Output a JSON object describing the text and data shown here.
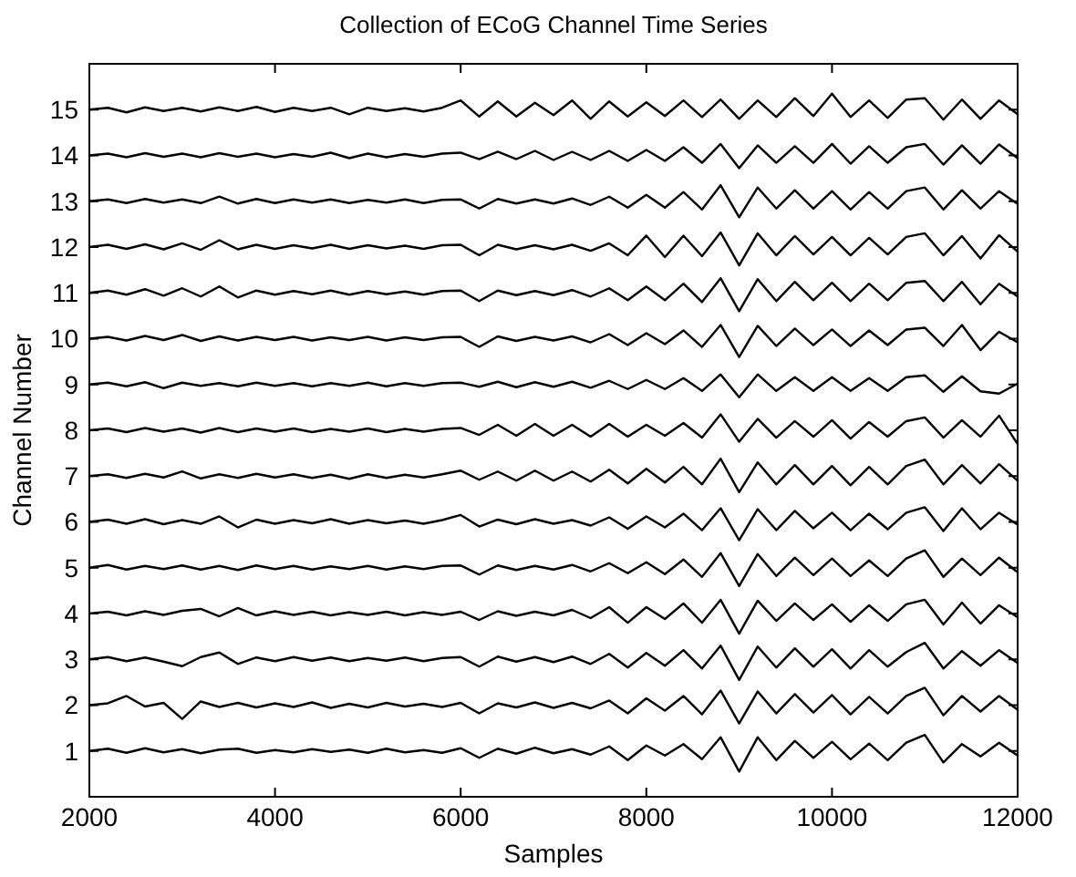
{
  "chart_data": {
    "type": "line",
    "title": "Collection of ECoG Channel Time Series",
    "xlabel": "Samples",
    "ylabel": "Channel Number",
    "x": [
      2000,
      2200,
      2400,
      2600,
      2800,
      3000,
      3200,
      3400,
      3600,
      3800,
      4000,
      4200,
      4400,
      4600,
      4800,
      5000,
      5200,
      5400,
      5600,
      5800,
      6000,
      6200,
      6400,
      6600,
      6800,
      7000,
      7200,
      7400,
      7600,
      7800,
      8000,
      8200,
      8400,
      8600,
      8800,
      9000,
      9200,
      9400,
      9600,
      9800,
      10000,
      10200,
      10400,
      10600,
      10800,
      11000,
      11200,
      11400,
      11600,
      11800,
      12000
    ],
    "xlim": [
      2000,
      12000
    ],
    "xticks": [
      2000,
      4000,
      6000,
      8000,
      10000,
      12000
    ],
    "ylim": [
      0,
      16
    ],
    "yticks": [
      1,
      2,
      3,
      4,
      5,
      6,
      7,
      8,
      9,
      10,
      11,
      12,
      13,
      14,
      15
    ],
    "series": [
      {
        "color": "#000000",
        "values": [
          1,
          1.05,
          0.96,
          1.06,
          0.97,
          1.04,
          0.95,
          1.03,
          1.05,
          0.96,
          1.02,
          0.97,
          1.04,
          0.98,
          1.03,
          0.96,
          1.05,
          0.97,
          1.02,
          0.96,
          1.06,
          0.85,
          1.05,
          0.94,
          1.07,
          0.95,
          1.04,
          0.92,
          1.1,
          0.8,
          1.12,
          0.9,
          1.15,
          0.82,
          1.3,
          0.55,
          1.3,
          0.8,
          1.22,
          0.85,
          1.2,
          0.82,
          1.16,
          0.8,
          1.18,
          1.35,
          0.75,
          1.15,
          0.88,
          1.18,
          0.9
        ]
      },
      {
        "color": "#000000",
        "values": [
          2,
          2.04,
          2.2,
          1.97,
          2.05,
          1.7,
          2.08,
          1.96,
          2.05,
          1.95,
          2.04,
          1.96,
          2.06,
          1.94,
          2.03,
          1.95,
          2.05,
          1.97,
          2.03,
          1.96,
          2.05,
          1.82,
          2.04,
          1.95,
          2.06,
          1.94,
          2.05,
          1.93,
          2.1,
          1.82,
          2.15,
          1.88,
          2.2,
          1.8,
          2.32,
          1.6,
          2.3,
          1.82,
          2.24,
          1.84,
          2.22,
          1.8,
          2.18,
          1.82,
          2.2,
          2.38,
          1.78,
          2.2,
          1.86,
          2.2,
          1.9
        ]
      },
      {
        "color": "#000000",
        "values": [
          3,
          3.05,
          2.96,
          3.04,
          2.95,
          2.85,
          3.05,
          3.15,
          2.9,
          3.04,
          2.96,
          3.05,
          2.97,
          3.04,
          2.96,
          3.03,
          2.97,
          3.04,
          2.96,
          3.03,
          3.05,
          2.84,
          3.06,
          2.95,
          3.05,
          2.94,
          3.06,
          2.9,
          3.12,
          2.82,
          3.14,
          2.86,
          3.2,
          2.8,
          3.3,
          2.55,
          3.28,
          2.82,
          3.24,
          2.84,
          3.22,
          2.8,
          3.2,
          2.84,
          3.16,
          3.36,
          2.8,
          3.18,
          2.86,
          3.2,
          2.92
        ]
      },
      {
        "color": "#000000",
        "values": [
          4,
          4.04,
          3.96,
          4.05,
          3.97,
          4.06,
          4.1,
          3.94,
          4.12,
          3.96,
          4.05,
          3.97,
          4.04,
          3.96,
          4.03,
          3.97,
          4.04,
          3.96,
          4.03,
          3.97,
          4.04,
          3.86,
          4.05,
          3.95,
          4.04,
          3.96,
          4.08,
          3.9,
          4.14,
          3.8,
          4.14,
          3.88,
          4.22,
          3.8,
          4.3,
          3.56,
          4.28,
          3.84,
          4.22,
          3.86,
          4.2,
          3.82,
          4.18,
          3.84,
          4.2,
          4.3,
          3.76,
          4.24,
          3.78,
          4.18,
          3.92
        ]
      },
      {
        "color": "#000000",
        "values": [
          5,
          5.06,
          4.96,
          5.04,
          4.97,
          5.05,
          4.96,
          5.04,
          4.95,
          5.05,
          4.97,
          5.04,
          4.96,
          5.03,
          4.97,
          5.04,
          4.96,
          5.03,
          4.97,
          5.04,
          5.05,
          4.85,
          5.05,
          4.95,
          5.04,
          4.96,
          5.06,
          4.92,
          5.1,
          4.88,
          5.12,
          4.86,
          5.18,
          4.8,
          5.32,
          4.6,
          5.3,
          4.82,
          5.22,
          4.84,
          5.2,
          4.82,
          5.16,
          4.82,
          5.2,
          5.38,
          4.8,
          5.2,
          4.84,
          5.22,
          4.9
        ]
      },
      {
        "color": "#000000",
        "values": [
          6,
          6.05,
          5.96,
          6.06,
          5.95,
          6.04,
          5.96,
          6.12,
          5.88,
          6.05,
          5.96,
          6.04,
          5.97,
          6.06,
          5.96,
          6.04,
          5.97,
          6.03,
          5.96,
          6.04,
          6.15,
          5.9,
          6.05,
          5.95,
          6.06,
          5.96,
          6.04,
          5.92,
          6.1,
          5.85,
          6.12,
          5.88,
          6.18,
          5.82,
          6.3,
          5.6,
          6.28,
          5.82,
          6.24,
          5.86,
          6.2,
          5.82,
          6.18,
          5.84,
          6.2,
          6.32,
          5.8,
          6.3,
          5.84,
          6.2,
          5.94
        ]
      },
      {
        "color": "#000000",
        "values": [
          7,
          7.04,
          6.96,
          7.05,
          6.97,
          7.1,
          6.95,
          7.04,
          6.96,
          7.05,
          6.97,
          7.04,
          6.96,
          7.03,
          6.94,
          7.04,
          6.96,
          7.03,
          6.97,
          7.04,
          7.12,
          6.92,
          7.1,
          6.9,
          7.12,
          6.9,
          7.1,
          6.88,
          7.14,
          6.84,
          7.16,
          6.86,
          7.2,
          6.82,
          7.38,
          6.65,
          7.3,
          6.82,
          7.24,
          6.82,
          7.22,
          6.8,
          7.2,
          6.82,
          7.22,
          7.36,
          6.82,
          7.24,
          6.84,
          7.26,
          6.9
        ]
      },
      {
        "color": "#000000",
        "values": [
          8,
          8.04,
          7.96,
          8.05,
          7.97,
          8.04,
          7.95,
          8.05,
          7.96,
          8.04,
          7.97,
          8.04,
          7.96,
          8.03,
          7.97,
          8.04,
          7.96,
          8.03,
          7.97,
          8.03,
          8.05,
          7.9,
          8.12,
          7.88,
          8.14,
          7.88,
          8.12,
          7.86,
          8.14,
          7.86,
          8.12,
          7.88,
          8.16,
          7.84,
          8.35,
          7.75,
          8.25,
          7.84,
          8.2,
          7.86,
          8.22,
          7.82,
          8.18,
          7.86,
          8.2,
          8.28,
          7.84,
          8.22,
          7.86,
          8.32,
          7.7
        ]
      },
      {
        "color": "#000000",
        "values": [
          9,
          9.04,
          8.96,
          9.05,
          8.92,
          9.04,
          8.97,
          9.03,
          8.96,
          9.04,
          8.97,
          9.03,
          8.96,
          9.03,
          8.97,
          9.04,
          8.96,
          9.03,
          8.97,
          9.03,
          9.04,
          8.95,
          9.06,
          8.94,
          9.05,
          8.95,
          9.06,
          8.93,
          9.08,
          8.9,
          9.1,
          8.9,
          9.14,
          8.86,
          9.22,
          8.72,
          9.22,
          8.86,
          9.16,
          8.86,
          9.16,
          8.86,
          9.14,
          8.86,
          9.16,
          9.2,
          8.84,
          9.18,
          8.85,
          8.8,
          9.02
        ]
      },
      {
        "color": "#000000",
        "values": [
          10,
          10.04,
          9.96,
          10.06,
          9.97,
          10.08,
          9.95,
          10.05,
          9.96,
          10.04,
          9.97,
          10.04,
          9.96,
          10.03,
          9.97,
          10.04,
          9.96,
          10.03,
          9.97,
          10.03,
          10.04,
          9.82,
          10.05,
          9.95,
          10.04,
          9.96,
          10.05,
          9.92,
          10.1,
          9.86,
          10.12,
          9.88,
          10.18,
          9.82,
          10.3,
          9.6,
          10.28,
          9.84,
          10.22,
          9.86,
          10.2,
          9.84,
          10.18,
          9.86,
          10.2,
          10.24,
          9.84,
          10.3,
          9.75,
          10.15,
          9.92
        ]
      },
      {
        "color": "#000000",
        "values": [
          11,
          11.05,
          10.96,
          11.08,
          10.94,
          11.1,
          10.92,
          11.14,
          10.9,
          11.05,
          10.96,
          11.04,
          10.97,
          11.05,
          10.96,
          11.04,
          10.97,
          11.03,
          10.96,
          11.04,
          11.05,
          10.82,
          11.05,
          10.95,
          11.04,
          10.95,
          11.06,
          10.92,
          11.1,
          10.84,
          11.14,
          10.84,
          11.2,
          10.8,
          11.32,
          10.6,
          11.3,
          10.82,
          11.24,
          10.84,
          11.22,
          10.82,
          11.2,
          10.84,
          11.22,
          11.26,
          10.82,
          11.24,
          10.75,
          11.2,
          10.92
        ]
      },
      {
        "color": "#000000",
        "values": [
          12,
          12.05,
          11.96,
          12.06,
          11.95,
          12.08,
          11.94,
          12.15,
          11.95,
          12.05,
          11.96,
          12.04,
          11.97,
          12.05,
          11.96,
          12.04,
          11.97,
          12.03,
          11.96,
          12.04,
          12.05,
          11.82,
          12.05,
          11.95,
          12.04,
          11.95,
          12.05,
          11.92,
          12.08,
          11.82,
          12.25,
          11.78,
          12.25,
          11.8,
          12.32,
          11.6,
          12.3,
          11.82,
          12.24,
          11.84,
          12.22,
          11.82,
          12.2,
          11.84,
          12.22,
          12.3,
          11.82,
          12.24,
          11.75,
          12.26,
          11.9
        ]
      },
      {
        "color": "#000000",
        "values": [
          13,
          13.04,
          12.96,
          13.05,
          12.97,
          13.04,
          12.96,
          13.1,
          12.95,
          13.05,
          12.96,
          13.04,
          12.97,
          13.04,
          12.96,
          13.03,
          12.97,
          13.04,
          12.96,
          13.03,
          13.04,
          12.84,
          13.05,
          12.95,
          13.04,
          12.95,
          13.06,
          12.92,
          13.1,
          12.86,
          13.14,
          12.86,
          13.2,
          12.82,
          13.35,
          12.65,
          13.3,
          12.84,
          13.24,
          12.84,
          13.22,
          12.82,
          13.2,
          12.84,
          13.22,
          13.3,
          12.82,
          13.24,
          12.84,
          13.22,
          12.94
        ]
      },
      {
        "color": "#000000",
        "values": [
          14,
          14.04,
          13.96,
          14.05,
          13.97,
          14.04,
          13.96,
          14.05,
          13.97,
          14.04,
          13.96,
          14.03,
          13.97,
          14.06,
          13.94,
          14.04,
          13.96,
          14.03,
          13.97,
          14.04,
          14.06,
          13.92,
          14.08,
          13.92,
          14.1,
          13.9,
          14.08,
          13.9,
          14.1,
          13.88,
          14.12,
          13.88,
          14.18,
          13.84,
          14.25,
          13.72,
          14.22,
          13.84,
          14.2,
          13.84,
          14.25,
          13.82,
          14.2,
          13.84,
          14.18,
          14.25,
          13.8,
          14.22,
          13.82,
          14.24,
          13.94
        ]
      },
      {
        "color": "#000000",
        "values": [
          15,
          15.04,
          14.94,
          15.05,
          14.97,
          15.04,
          14.96,
          15.05,
          14.97,
          15.06,
          14.95,
          15.04,
          14.97,
          15.04,
          14.9,
          15.04,
          14.97,
          15.03,
          14.96,
          15.04,
          15.2,
          14.85,
          15.18,
          14.85,
          15.15,
          14.88,
          15.2,
          14.8,
          15.18,
          14.85,
          15.16,
          14.86,
          15.2,
          14.84,
          15.22,
          14.8,
          15.2,
          14.84,
          15.25,
          14.86,
          15.35,
          14.84,
          15.2,
          14.82,
          15.22,
          15.25,
          14.78,
          15.22,
          14.8,
          15.2,
          14.9
        ]
      }
    ]
  }
}
